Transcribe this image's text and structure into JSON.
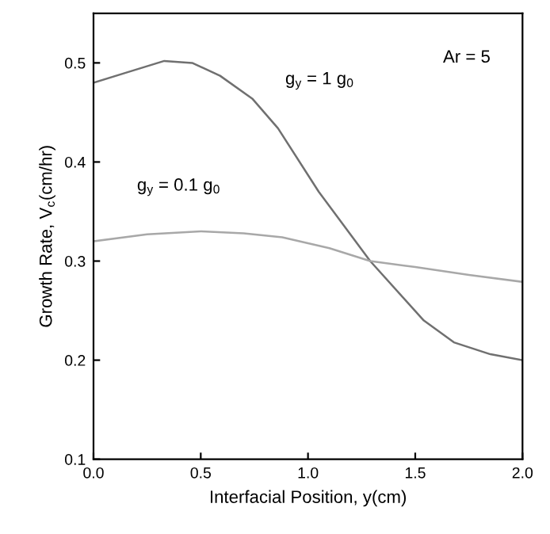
{
  "chart_data": {
    "type": "line",
    "xlabel": "Interfacial Position, y(cm)",
    "ylabel": "Growth Rate, V$_{c}$(cm/hr)",
    "xlim": [
      0,
      2.0
    ],
    "ylim": [
      0.1,
      0.55
    ],
    "xticks": [
      {
        "value": 0,
        "label": "0.0"
      },
      0.5,
      {
        "value": 1,
        "label": "1.0"
      },
      1.5,
      {
        "value": 2,
        "label": "2.0"
      }
    ],
    "yticks": [
      0.1,
      0.2,
      0.3,
      0.4,
      0.5
    ],
    "grid": false,
    "legend": false,
    "marker": "none",
    "line_style": "solid",
    "annotations": [
      "Ar = 5"
    ],
    "series": [
      {
        "name": "g$_{y}$ = 1 g$_{0}$",
        "color": "#707070",
        "x": [
          0,
          0.15,
          0.33,
          0.46,
          0.59,
          0.74,
          0.86,
          1.05,
          1.29,
          1.54,
          1.68,
          1.85,
          2.0
        ],
        "values": [
          0.48,
          0.49,
          0.502,
          0.5,
          0.487,
          0.464,
          0.434,
          0.37,
          0.3,
          0.24,
          0.218,
          0.206,
          0.2
        ]
      },
      {
        "name": "g$_{y}$ = 0.1 g$_{0}$",
        "color": "#a8a8a8",
        "x": [
          0,
          0.25,
          0.5,
          0.7,
          0.88,
          1.1,
          1.29,
          1.5,
          1.75,
          2.0
        ],
        "values": [
          0.32,
          0.327,
          0.33,
          0.328,
          0.324,
          0.313,
          0.3,
          0.294,
          0.286,
          0.279
        ]
      }
    ]
  }
}
